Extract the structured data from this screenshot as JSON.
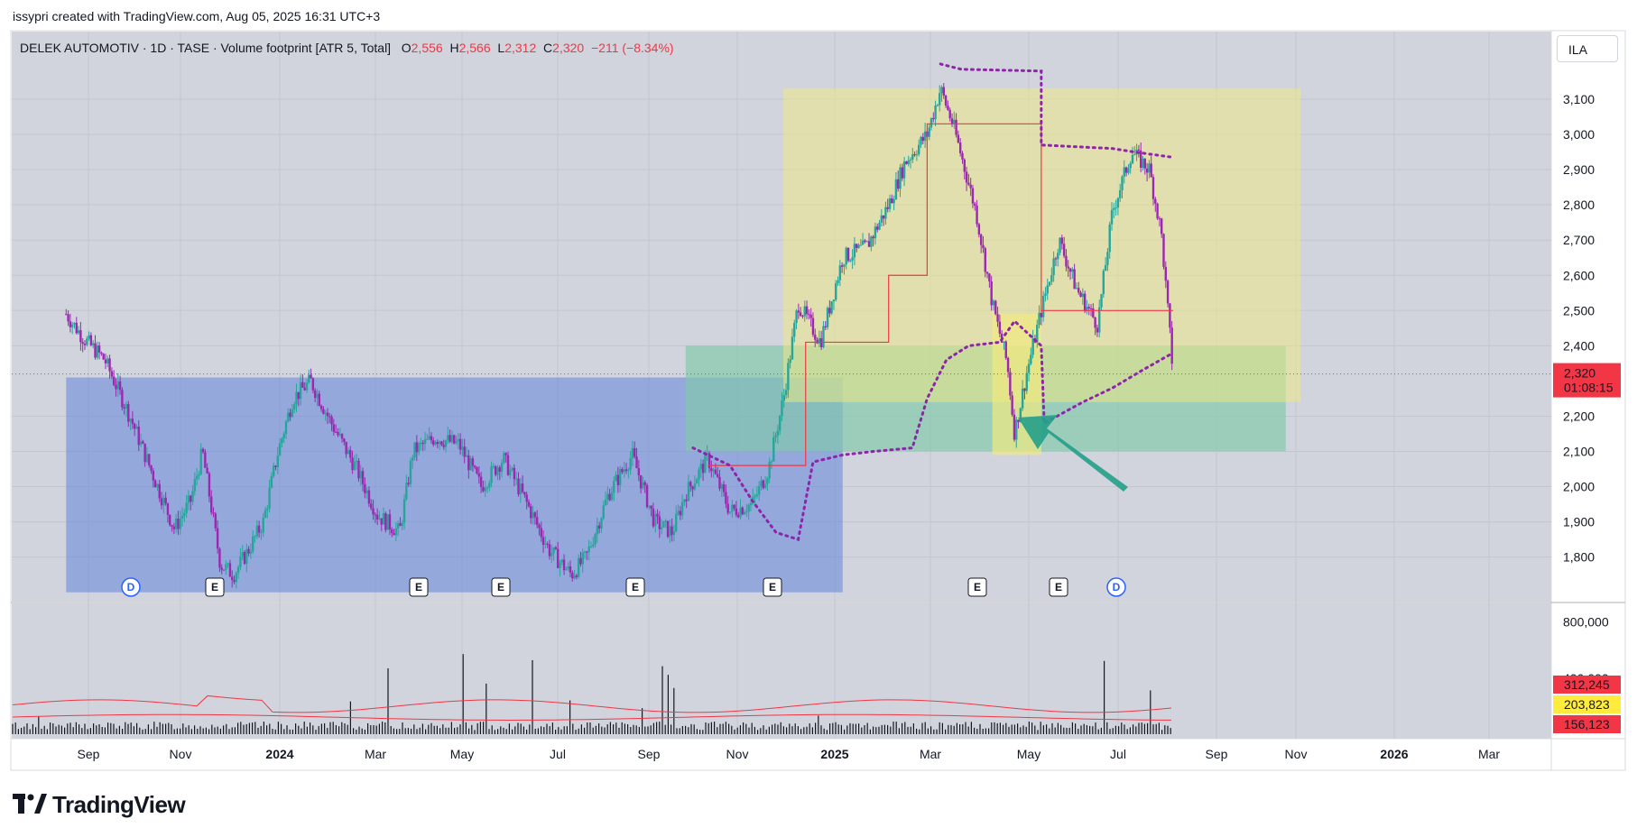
{
  "header": {
    "credit": "issypri created with TradingView.com, Aug 05, 2025 16:31 UTC+3"
  },
  "legend": {
    "symbol": "DELEK AUTOMOTIV · 1D · TASE · Volume footprint [ATR 5, Total]",
    "o_key": "O",
    "o_val": "2,556",
    "h_key": "H",
    "h_val": "2,566",
    "l_key": "L",
    "l_val": "2,312",
    "c_key": "C",
    "c_val": "2,320",
    "change": "−211 (−8.34%)"
  },
  "currency_button": "ILA",
  "price_tag": {
    "price": "2,320",
    "countdown": "01:08:15"
  },
  "volume_tags": [
    "312,245",
    "203,823",
    "156,123"
  ],
  "volume_axis": [
    "800,000",
    "400,000"
  ],
  "events": [
    "D",
    "E",
    "E",
    "E",
    "E",
    "E",
    "E",
    "E",
    "D"
  ],
  "brand": "TradingView",
  "colors": {
    "up": "#26a69a",
    "down": "#f23645",
    "candle": "#9c27b0",
    "blue_zone": "#6a8bdc",
    "green_zone": "#7fc9a9",
    "yellow_zone": "#f1ea80",
    "stop_dotted": "#8e24aa",
    "arrow": "#23a088"
  },
  "chart_data": {
    "type": "candlestick",
    "title": "DELEK AUTOMOTIV · 1D · TASE · Volume footprint [ATR 5, Total]",
    "y_ticks": [
      3100,
      3000,
      2900,
      2800,
      2700,
      2600,
      2500,
      2400,
      2200,
      2100,
      2000,
      1900,
      1800
    ],
    "y_tick_labels": [
      "3,100",
      "3,000",
      "2,900",
      "2,800",
      "2,700",
      "2,600",
      "2,500",
      "2,400",
      "2,200",
      "2,100",
      "2,000",
      "1,900",
      "1,800"
    ],
    "ylim": [
      1700,
      3200
    ],
    "x_tick_labels": [
      "Sep",
      "Nov",
      "2024",
      "Mar",
      "May",
      "Jul",
      "Sep",
      "Nov",
      "2025",
      "Mar",
      "May",
      "Jul",
      "Sep",
      "Nov",
      "2026",
      "Mar"
    ],
    "bold_x_ticks": [
      "2024",
      "2025",
      "2026"
    ],
    "last_close": 2320,
    "price_path": [
      [
        "2023-07-20",
        2490
      ],
      [
        "2023-08-01",
        2420
      ],
      [
        "2023-08-15",
        2360
      ],
      [
        "2023-09-01",
        2200
      ],
      [
        "2023-09-15",
        2050
      ],
      [
        "2023-10-01",
        1880
      ],
      [
        "2023-10-12",
        1960
      ],
      [
        "2023-10-20",
        2100
      ],
      [
        "2023-11-01",
        1780
      ],
      [
        "2023-11-10",
        1750
      ],
      [
        "2023-11-20",
        1820
      ],
      [
        "2023-11-30",
        1900
      ],
      [
        "2023-12-10",
        2100
      ],
      [
        "2023-12-20",
        2250
      ],
      [
        "2024-01-01",
        2300
      ],
      [
        "2024-01-15",
        2180
      ],
      [
        "2024-02-01",
        2050
      ],
      [
        "2024-02-15",
        1920
      ],
      [
        "2024-03-01",
        1870
      ],
      [
        "2024-03-10",
        2100
      ],
      [
        "2024-03-25",
        2140
      ],
      [
        "2024-04-10",
        2120
      ],
      [
        "2024-04-25",
        2000
      ],
      [
        "2024-05-10",
        2080
      ],
      [
        "2024-05-25",
        1960
      ],
      [
        "2024-06-10",
        1820
      ],
      [
        "2024-06-25",
        1750
      ],
      [
        "2024-07-05",
        1800
      ],
      [
        "2024-07-20",
        1980
      ],
      [
        "2024-08-05",
        2090
      ],
      [
        "2024-08-20",
        1900
      ],
      [
        "2024-09-01",
        1870
      ],
      [
        "2024-09-10",
        1980
      ],
      [
        "2024-09-25",
        2080
      ],
      [
        "2024-10-10",
        1930
      ],
      [
        "2024-10-25",
        1950
      ],
      [
        "2024-11-05",
        2050
      ],
      [
        "2024-11-15",
        2250
      ],
      [
        "2024-11-25",
        2520
      ],
      [
        "2024-12-10",
        2410
      ],
      [
        "2024-12-25",
        2650
      ],
      [
        "2025-01-10",
        2680
      ],
      [
        "2025-01-25",
        2800
      ],
      [
        "2025-02-05",
        2920
      ],
      [
        "2025-02-20",
        3000
      ],
      [
        "2025-03-01",
        3130
      ],
      [
        "2025-03-10",
        3020
      ],
      [
        "2025-03-25",
        2780
      ],
      [
        "2025-04-05",
        2520
      ],
      [
        "2025-04-15",
        2350
      ],
      [
        "2025-04-20",
        2150
      ],
      [
        "2025-04-28",
        2320
      ],
      [
        "2025-05-08",
        2500
      ],
      [
        "2025-05-20",
        2700
      ],
      [
        "2025-06-01",
        2560
      ],
      [
        "2025-06-15",
        2460
      ],
      [
        "2025-06-25",
        2780
      ],
      [
        "2025-07-08",
        2950
      ],
      [
        "2025-07-20",
        2900
      ],
      [
        "2025-07-28",
        2720
      ],
      [
        "2025-08-05",
        2320
      ]
    ],
    "zones": [
      {
        "name": "blue",
        "from": "2023-07-20",
        "to": "2024-12-25",
        "low": 1700,
        "high": 2310
      },
      {
        "name": "green",
        "from": "2024-09-10",
        "to": "2025-10-20",
        "low": 2100,
        "high": 2400
      },
      {
        "name": "yellow-large",
        "from": "2024-11-15",
        "to": "2025-10-30",
        "low": 2240,
        "high": 3130
      },
      {
        "name": "yellow-small",
        "from": "2025-04-05",
        "to": "2025-05-08",
        "low": 2090,
        "high": 2490
      }
    ],
    "volume": {
      "series": [
        "volume",
        "ma-fast",
        "ma-slow"
      ],
      "last": [
        312245,
        203823,
        156123
      ],
      "ylim": [
        0,
        900000
      ]
    }
  }
}
